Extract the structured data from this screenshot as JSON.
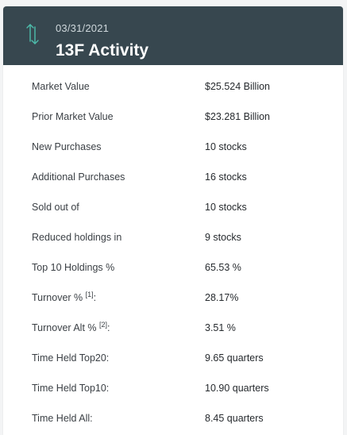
{
  "header": {
    "date": "03/31/2021",
    "title": "13F Activity",
    "icon": "swap-vertical-icon",
    "icon_color": "#4dbdac",
    "background_color": "#37474f"
  },
  "rows": [
    {
      "label": "Market Value",
      "value": "$25.524 Billion"
    },
    {
      "label": "Prior Market Value",
      "value": "$23.281 Billion"
    },
    {
      "label": "New Purchases",
      "value": "10 stocks"
    },
    {
      "label": "Additional Purchases",
      "value": "16 stocks"
    },
    {
      "label": "Sold out of",
      "value": "10 stocks"
    },
    {
      "label": "Reduced holdings in",
      "value": "9 stocks"
    },
    {
      "label": "Top 10 Holdings %",
      "value": "65.53 %"
    },
    {
      "label": "Turnover %",
      "note": "[1]",
      "suffix": ":",
      "value": "28.17%"
    },
    {
      "label": "Turnover Alt %",
      "note": "[2]",
      "suffix": ":",
      "value": "3.51 %"
    },
    {
      "label": "Time Held Top20:",
      "value": "9.65 quarters"
    },
    {
      "label": "Time Held Top10:",
      "value": "10.90 quarters"
    },
    {
      "label": "Time Held All:",
      "value": "8.45 quarters"
    }
  ]
}
